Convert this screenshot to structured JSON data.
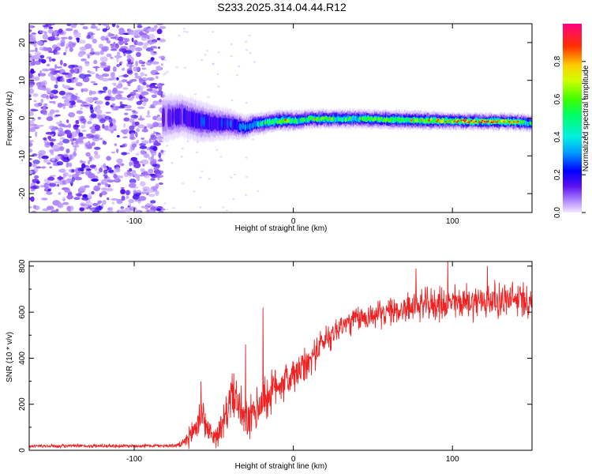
{
  "title": "S233.2025.314.04.44.R12",
  "chart_data": [
    {
      "type": "heatmap",
      "name": "spectrogram",
      "xlabel": "Height of straight line (km)",
      "ylabel": "Frequency (Hz)",
      "xlim": [
        -166,
        150
      ],
      "ylim": [
        -25,
        25
      ],
      "xticks": [
        -100,
        0,
        100
      ],
      "xtick_labels": [
        "-100",
        "0",
        "100"
      ],
      "yticks": [
        -20,
        -10,
        0,
        10,
        20
      ],
      "ytick_labels": [
        "-20",
        "-10",
        "0",
        "10",
        "20"
      ],
      "colorbar": {
        "label": "Normalized spectral amplitude",
        "range": [
          0,
          1
        ],
        "ticks": [
          0.0,
          0.2,
          0.4,
          0.6,
          0.8
        ],
        "tick_labels": [
          "0.0",
          "0.2",
          "0.4",
          "0.6",
          "0.8"
        ]
      },
      "noise_region": [
        -166,
        -82
      ],
      "ridge": {
        "x": [
          -82,
          -70,
          -60,
          -50,
          -40,
          -30,
          -25,
          -15,
          -5,
          0,
          10,
          20,
          40,
          60,
          80,
          100,
          120,
          140,
          150
        ],
        "freq": [
          0,
          0.6,
          -0.8,
          -1.4,
          -1.6,
          -2.4,
          -1.6,
          -1.0,
          -0.6,
          -0.8,
          -0.2,
          -0.2,
          -0.2,
          -0.4,
          -0.6,
          -0.8,
          -0.9,
          -1.0,
          -1.4
        ],
        "width": [
          2.6,
          2.2,
          2.2,
          1.9,
          1.6,
          1.3,
          1.2,
          1.1,
          1.1,
          1.1,
          1.0,
          1.0,
          1.0,
          1.0,
          1.0,
          0.9,
          0.9,
          0.9,
          0.9
        ],
        "peak": [
          0.35,
          0.45,
          0.48,
          0.46,
          0.5,
          0.55,
          0.6,
          0.75,
          0.85,
          0.7,
          0.78,
          0.8,
          0.75,
          0.8,
          0.85,
          0.92,
          0.95,
          0.9,
          0.7
        ]
      }
    },
    {
      "type": "line",
      "name": "snr",
      "color": "#ee2222",
      "xlabel": "Height of straight line (km)",
      "ylabel": "SNR (10 * v/v)",
      "xlim": [
        -166,
        150
      ],
      "ylim": [
        0,
        820
      ],
      "xticks": [
        -100,
        0,
        100
      ],
      "xtick_labels": [
        "-100",
        "0",
        "100"
      ],
      "yticks": [
        0,
        200,
        400,
        600,
        800
      ],
      "ytick_labels": [
        "0",
        "200",
        "400",
        "600",
        "800"
      ],
      "envelope": {
        "x": [
          -166,
          -75,
          -70,
          -65,
          -60,
          -57,
          -55,
          -50,
          -45,
          -38,
          -35,
          -30,
          -25,
          -20,
          -15,
          -10,
          -5,
          0,
          5,
          10,
          15,
          20,
          30,
          40,
          60,
          80,
          100,
          120,
          150
        ],
        "mean": [
          18,
          20,
          25,
          60,
          120,
          170,
          100,
          60,
          90,
          260,
          200,
          120,
          150,
          210,
          240,
          290,
          300,
          320,
          350,
          380,
          440,
          480,
          540,
          570,
          600,
          630,
          640,
          650,
          655
        ],
        "amp": [
          8,
          8,
          15,
          50,
          100,
          80,
          60,
          40,
          80,
          100,
          110,
          100,
          100,
          110,
          100,
          90,
          90,
          90,
          80,
          80,
          70,
          70,
          60,
          60,
          60,
          70,
          80,
          80,
          80
        ]
      },
      "spikes": [
        {
          "x": -19,
          "y": 620
        },
        {
          "x": -58,
          "y": 300
        },
        {
          "x": -30,
          "y": 460
        },
        {
          "x": 97,
          "y": 830
        },
        {
          "x": 122,
          "y": 800
        },
        {
          "x": 77,
          "y": 790
        }
      ],
      "samples": 1500
    }
  ]
}
